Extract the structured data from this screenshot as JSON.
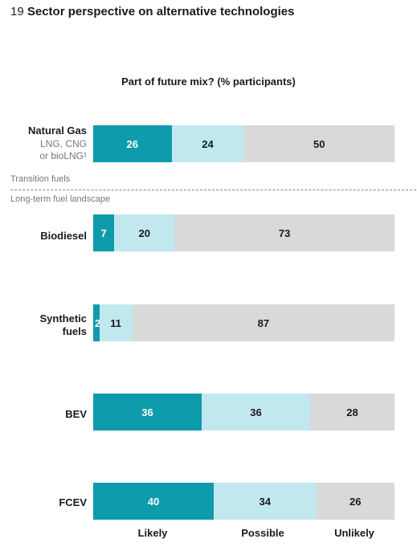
{
  "header": {
    "number": "19",
    "title": "Sector perspective on alternative technologies"
  },
  "chart_data": {
    "type": "bar",
    "orientation": "horizontal",
    "stacked": true,
    "subtitle": "Part of future mix? (% participants)",
    "categories": [
      "Natural Gas",
      "Biodiesel",
      "Synthetic fuels",
      "BEV",
      "FCEV"
    ],
    "category_sublabels": {
      "Natural Gas": "LNG, CNG or bioLNG¹"
    },
    "series": [
      {
        "name": "Likely",
        "values": [
          26,
          7,
          2,
          36,
          40
        ]
      },
      {
        "name": "Possible",
        "values": [
          24,
          20,
          11,
          36,
          34
        ]
      },
      {
        "name": "Unlikely",
        "values": [
          50,
          73,
          87,
          28,
          26
        ]
      }
    ],
    "groups": [
      "Transition fuels",
      "Long-term fuel landscape"
    ],
    "legend_placement": "bottom",
    "colors": {
      "Likely": "#0e9bab",
      "Possible": "#c0e8ee",
      "Unlikely": "#d9d9d9"
    },
    "text_colors": {
      "Likely": "#ffffff",
      "Possible": "#1a1a1a",
      "Unlikely": "#1a1a1a"
    }
  },
  "labels": {
    "cat0_line1": "Natural Gas",
    "cat0_sub1": "LNG, CNG",
    "cat0_sub2": "or bioLNG¹",
    "cat1": "Biodiesel",
    "cat2_line1": "Synthetic",
    "cat2_line2": "fuels",
    "cat3": "BEV",
    "cat4": "FCEV",
    "group_transition": "Transition fuels",
    "group_longterm": "Long-term fuel landscape",
    "legend_likely": "Likely",
    "legend_possible": "Possible",
    "legend_unlikely": "Unlikely"
  }
}
